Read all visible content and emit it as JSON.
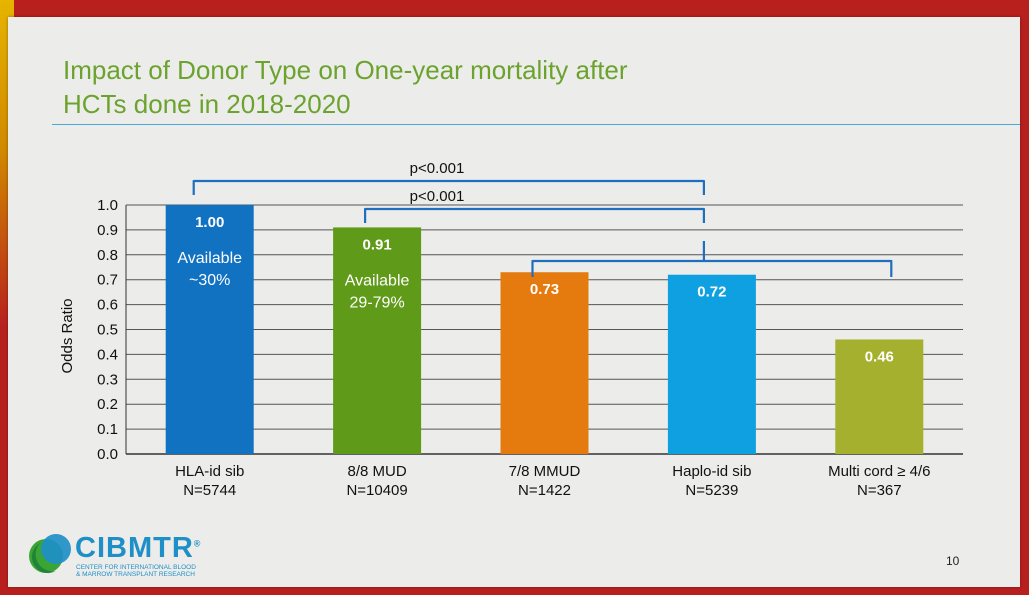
{
  "title": {
    "line1": "Impact of Donor Type on One-year mortality after",
    "line2": "HCTs done in 2018-2020"
  },
  "colors": {
    "title": "#6ba32e",
    "rule": "#4aa7d8",
    "bracket": "#1e6fbf",
    "bars": [
      "#1172c2",
      "#5f9a19",
      "#e57a0f",
      "#0ea0e0",
      "#a5b02e"
    ]
  },
  "chart_data": {
    "type": "bar",
    "ylabel": "Odds Ratio",
    "ylim": [
      0,
      1.0
    ],
    "yticks": [
      "0.0",
      "0.1",
      "0.2",
      "0.3",
      "0.4",
      "0.5",
      "0.6",
      "0.7",
      "0.8",
      "0.9",
      "1.0"
    ],
    "grid": true,
    "categories": [
      "HLA-id sib",
      "8/8 MUD",
      "7/8 MMUD",
      "Haplo-id sib",
      "Multi cord ≥ 4/6"
    ],
    "category_n": [
      "N=5744",
      "N=10409",
      "N=1422",
      "N=5239",
      "N=367"
    ],
    "values": [
      1.0,
      0.91,
      0.73,
      0.72,
      0.46
    ],
    "data_labels": [
      "1.00",
      "0.91",
      "0.73",
      "0.72",
      "0.46"
    ],
    "bar_notes": [
      [
        "Available",
        "~30%"
      ],
      [
        "Available",
        "29-79%"
      ],
      [],
      [],
      []
    ],
    "annotations": [
      {
        "text": "p<0.001",
        "from": "HLA-id sib",
        "to": "7/8 MMUD, Haplo-id sib, Multi cord ≥ 4/6"
      },
      {
        "text": "p<0.001",
        "from": "8/8 MUD",
        "to": "7/8 MMUD, Haplo-id sib, Multi cord ≥ 4/6"
      }
    ]
  },
  "logo": {
    "name": "CIBMTR",
    "registered": "®",
    "subtitle_line1": "CENTER FOR INTERNATIONAL BLOOD",
    "subtitle_line2": "& MARROW TRANSPLANT RESEARCH"
  },
  "page_number": "10"
}
